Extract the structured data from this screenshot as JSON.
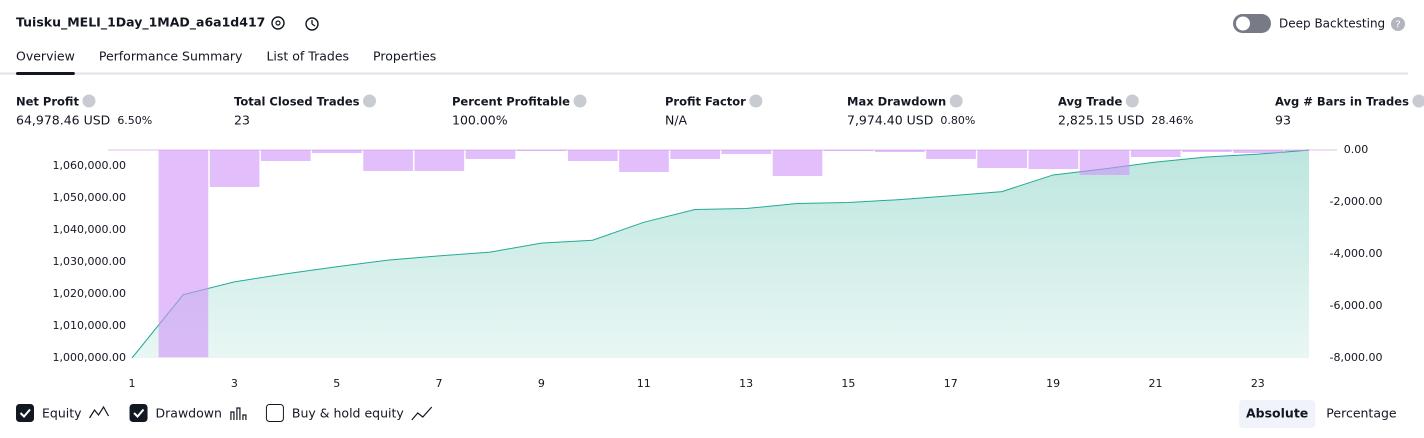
{
  "header": {
    "title": "Tuisku_MELI_1Day_1MAD_a6a1d417",
    "deep_backtesting": "Deep Backtesting",
    "tabs": [
      "Overview",
      "Performance Summary",
      "List of Trades",
      "Properties"
    ],
    "active_tab": 0
  },
  "metrics": [
    {
      "label": "Net Profit",
      "value": "64,978.46 USD",
      "sub": "6.50%",
      "color": "#089981"
    },
    {
      "label": "Total Closed Trades",
      "value": "23",
      "color": "#131722"
    },
    {
      "label": "Percent Profitable",
      "value": "100.00%",
      "color": "#089981"
    },
    {
      "label": "Profit Factor",
      "value": "N/A",
      "color": "#f23645"
    },
    {
      "label": "Max Drawdown",
      "value": "7,974.40 USD",
      "sub": "0.80%",
      "color": "#f23645"
    },
    {
      "label": "Avg Trade",
      "value": "2,825.15 USD",
      "sub": "28.46%",
      "color": "#089981"
    },
    {
      "label": "Avg # Bars in Trades",
      "value": "93",
      "color": "#131722"
    }
  ],
  "chart_data": {
    "type": "line",
    "x": [
      1,
      2,
      3,
      4,
      5,
      6,
      7,
      8,
      9,
      10,
      11,
      12,
      13,
      14,
      15,
      16,
      17,
      18,
      19,
      20,
      21,
      22,
      23,
      24
    ],
    "xlim": [
      1,
      24
    ],
    "xticks": [
      1,
      3,
      5,
      7,
      9,
      11,
      13,
      15,
      17,
      19,
      21,
      23
    ],
    "series": [
      {
        "name": "Equity",
        "color": "#22ab94",
        "visible": true,
        "values": [
          1000000,
          1019800,
          1023800,
          1026300,
          1028500,
          1030600,
          1031900,
          1033100,
          1035900,
          1036800,
          1042400,
          1046400,
          1046700,
          1048300,
          1048600,
          1049500,
          1050700,
          1052000,
          1057200,
          1059100,
          1061200,
          1062800,
          1063700,
          1064978.46
        ]
      },
      {
        "name": "Drawdown",
        "color": "#ce93f8",
        "visible": true,
        "axis": "y2",
        "values": [
          null,
          -7974.4,
          -1423,
          -423,
          -115,
          -808,
          -808,
          -346,
          -40,
          -423,
          -846,
          -346,
          -154,
          -1000,
          -40,
          -77,
          -346,
          -692,
          -731,
          -962,
          -269,
          -77,
          -115,
          -40
        ]
      }
    ],
    "extra_legend": {
      "name": "Buy & hold equity",
      "visible": false
    },
    "ylim": [
      1000000,
      1065000
    ],
    "yticks": [
      {
        "value": 1000000,
        "label": "1,000,000.00"
      },
      {
        "value": 1010000,
        "label": "1,010,000.00"
      },
      {
        "value": 1020000,
        "label": "1,020,000.00"
      },
      {
        "value": 1030000,
        "label": "1,030,000.00"
      },
      {
        "value": 1040000,
        "label": "1,040,000.00"
      },
      {
        "value": 1050000,
        "label": "1,050,000.00"
      },
      {
        "value": 1060000,
        "label": "1,060,000.00"
      }
    ],
    "y2lim": [
      -8000,
      0
    ],
    "y2ticks": [
      {
        "value": 0,
        "label": "0.00"
      },
      {
        "value": -2000,
        "label": "-2,000.00"
      },
      {
        "value": -4000,
        "label": "-4,000.00"
      },
      {
        "value": -6000,
        "label": "-6,000.00"
      },
      {
        "value": -8000,
        "label": "-8,000.00"
      }
    ],
    "grid": false
  },
  "scale_buttons": {
    "options": [
      "Absolute",
      "Percentage"
    ],
    "active": 0
  }
}
